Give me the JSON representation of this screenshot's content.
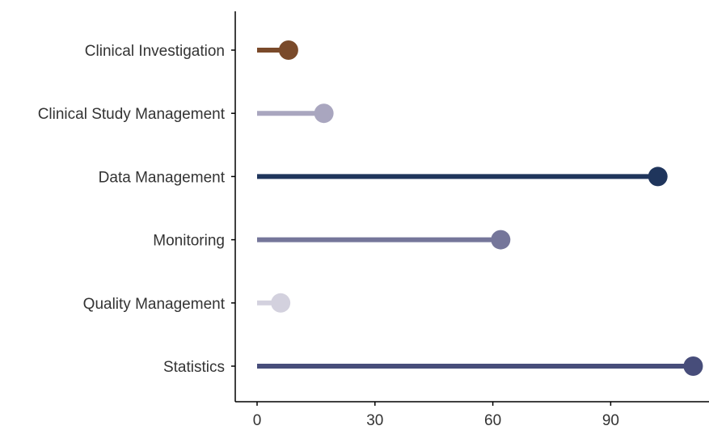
{
  "chart_data": {
    "type": "lollipop",
    "categories": [
      "Clinical Investigation",
      "Clinical Study Management",
      "Data Management",
      "Monitoring",
      "Quality Management",
      "Statistics"
    ],
    "values": [
      8,
      17,
      102,
      62,
      6,
      111
    ],
    "colors": [
      "#7a4a2a",
      "#a9a6bf",
      "#1f355c",
      "#75769a",
      "#d3d1de",
      "#474d7a"
    ],
    "x_ticks": [
      "0",
      "30",
      "60",
      "90"
    ],
    "xlim": [
      -5,
      114
    ],
    "grid": false,
    "legend": "none"
  }
}
